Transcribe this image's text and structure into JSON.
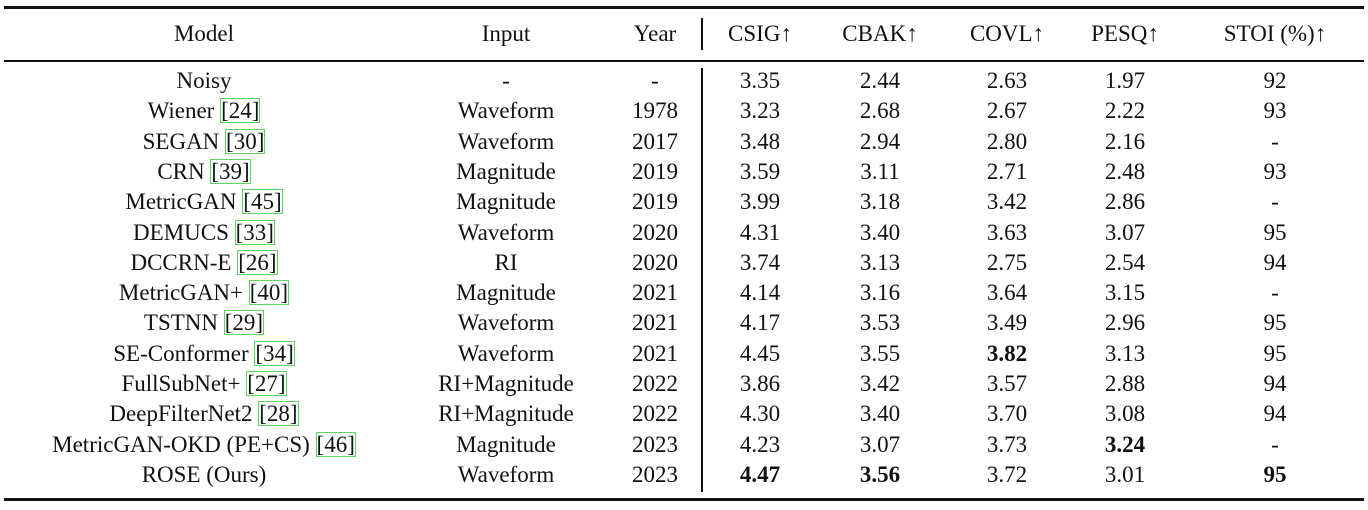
{
  "table": {
    "headers": {
      "model": "Model",
      "input": "Input",
      "year": "Year",
      "csig": "CSIG↑",
      "cbak": "CBAK↑",
      "covl": "COVL↑",
      "pesq": "PESQ↑",
      "stoi": "STOI (%)↑"
    },
    "rows": [
      {
        "model": "Noisy",
        "ref": "",
        "input": "-",
        "year": "-",
        "csig": "3.35",
        "cbak": "2.44",
        "covl": "2.63",
        "pesq": "1.97",
        "stoi": "92"
      },
      {
        "model": "Wiener ",
        "ref": "[24]",
        "input": "Waveform",
        "year": "1978",
        "csig": "3.23",
        "cbak": "2.68",
        "covl": "2.67",
        "pesq": "2.22",
        "stoi": "93"
      },
      {
        "model": "SEGAN ",
        "ref": "[30]",
        "input": "Waveform",
        "year": "2017",
        "csig": "3.48",
        "cbak": "2.94",
        "covl": "2.80",
        "pesq": "2.16",
        "stoi": "-"
      },
      {
        "model": "CRN ",
        "ref": "[39]",
        "input": "Magnitude",
        "year": "2019",
        "csig": "3.59",
        "cbak": "3.11",
        "covl": "2.71",
        "pesq": "2.48",
        "stoi": "93"
      },
      {
        "model": "MetricGAN ",
        "ref": "[45]",
        "input": "Magnitude",
        "year": "2019",
        "csig": "3.99",
        "cbak": "3.18",
        "covl": "3.42",
        "pesq": "2.86",
        "stoi": "-"
      },
      {
        "model": "DEMUCS ",
        "ref": "[33]",
        "input": "Waveform",
        "year": "2020",
        "csig": "4.31",
        "cbak": "3.40",
        "covl": "3.63",
        "pesq": "3.07",
        "stoi": "95"
      },
      {
        "model": "DCCRN-E ",
        "ref": "[26]",
        "input": "RI",
        "year": "2020",
        "csig": "3.74",
        "cbak": "3.13",
        "covl": "2.75",
        "pesq": "2.54",
        "stoi": "94"
      },
      {
        "model": "MetricGAN+ ",
        "ref": "[40]",
        "input": "Magnitude",
        "year": "2021",
        "csig": "4.14",
        "cbak": "3.16",
        "covl": "3.64",
        "pesq": "3.15",
        "stoi": "-"
      },
      {
        "model": "TSTNN ",
        "ref": "[29]",
        "input": "Waveform",
        "year": "2021",
        "csig": "4.17",
        "cbak": "3.53",
        "covl": "3.49",
        "pesq": "2.96",
        "stoi": "95"
      },
      {
        "model": "SE-Conformer ",
        "ref": "[34]",
        "input": "Waveform",
        "year": "2021",
        "csig": "4.45",
        "cbak": "3.55",
        "covl": "3.82",
        "pesq": "3.13",
        "stoi": "95"
      },
      {
        "model": "FullSubNet+ ",
        "ref": "[27]",
        "input": "RI+Magnitude",
        "year": "2022",
        "csig": "3.86",
        "cbak": "3.42",
        "covl": "3.57",
        "pesq": "2.88",
        "stoi": "94"
      },
      {
        "model": "DeepFilterNet2 ",
        "ref": "[28]",
        "input": "RI+Magnitude",
        "year": "2022",
        "csig": "4.30",
        "cbak": "3.40",
        "covl": "3.70",
        "pesq": "3.08",
        "stoi": "94"
      },
      {
        "model": "MetricGAN-OKD (PE+CS) ",
        "ref": "[46]",
        "input": "Magnitude",
        "year": "2023",
        "csig": "4.23",
        "cbak": "3.07",
        "covl": "3.73",
        "pesq": "3.24",
        "stoi": "-"
      },
      {
        "model": "ROSE (Ours)",
        "ref": "",
        "input": "Waveform",
        "year": "2023",
        "csig": "4.47",
        "cbak": "3.56",
        "covl": "3.72",
        "pesq": "3.01",
        "stoi": "95"
      }
    ],
    "bold_cells": [
      "9.covl",
      "12.pesq",
      "13.csig",
      "13.cbak",
      "13.stoi"
    ]
  }
}
